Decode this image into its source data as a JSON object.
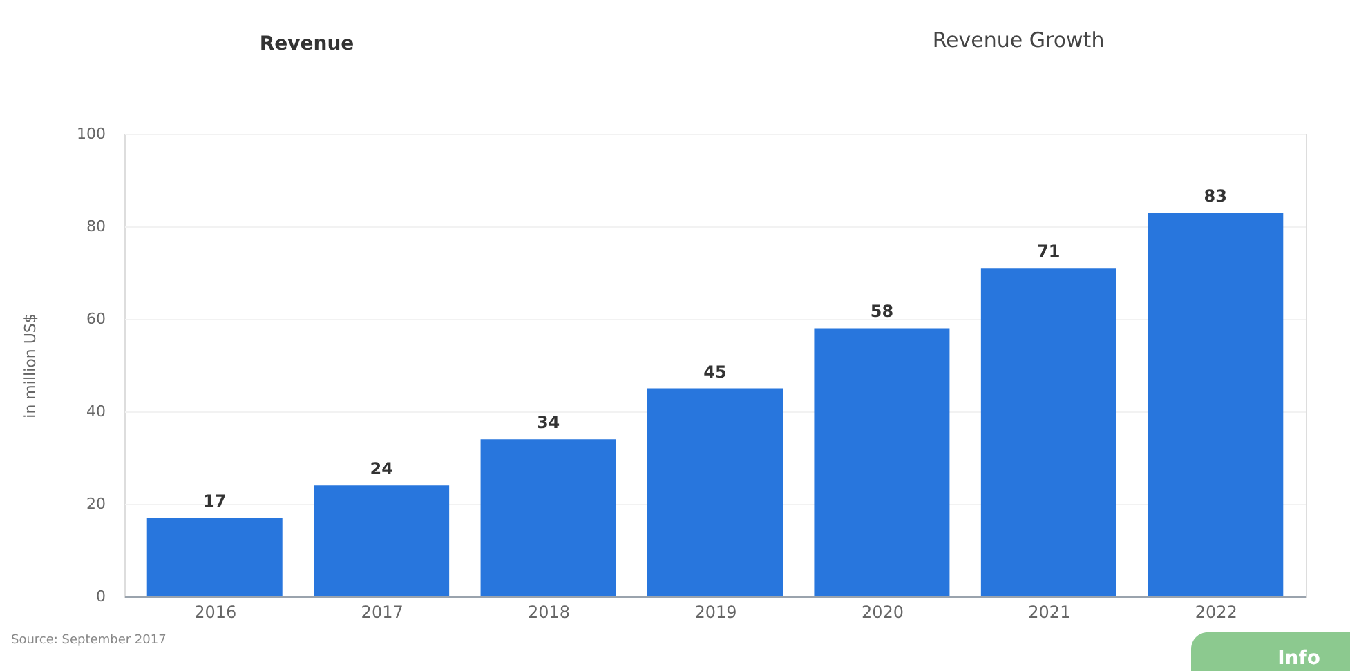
{
  "chart_data": {
    "type": "bar",
    "ylabel": "in million US$",
    "categories": [
      "2016",
      "2017",
      "2018",
      "2019",
      "2020",
      "2021",
      "2022"
    ],
    "values": [
      17,
      24,
      34,
      45,
      58,
      71,
      83
    ],
    "color": "#2876dd",
    "ylim": [
      0,
      100
    ],
    "yticks": [
      0,
      20,
      40,
      60,
      80,
      100
    ],
    "grid": "y",
    "data_labels": true,
    "annotations": [
      "Revenue",
      "Revenue Growth",
      "Source: September 2017",
      "Info"
    ]
  }
}
